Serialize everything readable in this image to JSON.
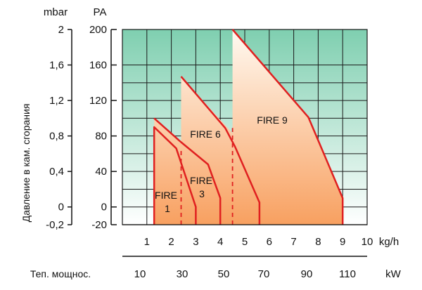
{
  "chart_data": {
    "type": "area",
    "x_axis": {
      "label": "kg/h",
      "range": [
        0,
        10
      ],
      "ticks": [
        "1",
        "2",
        "3",
        "4",
        "5",
        "6",
        "7",
        "8",
        "9",
        "10"
      ]
    },
    "secondary_x_axis": {
      "label": "kW",
      "caption": "Теп. мощнос.",
      "ticks": [
        "10",
        "30",
        "50",
        "70",
        "90",
        "110"
      ]
    },
    "y_axis_left": {
      "unit": "mbar",
      "ticks": [
        "2",
        "1,6",
        "1,2",
        "0,8",
        "0,4",
        "0",
        "-0,2"
      ]
    },
    "y_axis_right": {
      "unit": "PA",
      "ticks": [
        "200",
        "160",
        "120",
        "80",
        "40",
        "0",
        "-20"
      ],
      "range": [
        -20,
        200
      ]
    },
    "y_label": "Давление в кам. сгорания",
    "grid": true,
    "series": [
      {
        "name": "FIRE 1",
        "name_lines": [
          "FIRE",
          "1"
        ],
        "points": [
          [
            1.3,
            -20
          ],
          [
            1.3,
            90
          ],
          [
            2.2,
            66
          ],
          [
            3.0,
            0
          ],
          [
            3.0,
            -20
          ]
        ]
      },
      {
        "name": "FIRE 3",
        "name_lines": [
          "FIRE",
          "3"
        ],
        "points": [
          [
            1.3,
            100
          ],
          [
            2.4,
            73
          ],
          [
            3.5,
            48
          ],
          [
            4.0,
            10
          ],
          [
            4.0,
            -20
          ]
        ]
      },
      {
        "name": "FIRE 6",
        "name_lines": [
          "FIRE 6"
        ],
        "points": [
          [
            2.4,
            147
          ],
          [
            4.2,
            89
          ],
          [
            4.6,
            68
          ],
          [
            5.6,
            5
          ],
          [
            5.6,
            -20
          ]
        ]
      },
      {
        "name": "FIRE 9",
        "name_lines": [
          "FIRE 9"
        ],
        "points": [
          [
            4.5,
            200
          ],
          [
            7.6,
            101
          ],
          [
            9.0,
            10
          ],
          [
            9.0,
            -20
          ]
        ]
      }
    ],
    "fill_boundary": [
      [
        1.3,
        100
      ],
      [
        2.4,
        73
      ],
      [
        2.4,
        147
      ],
      [
        4.5,
        83
      ],
      [
        4.5,
        200
      ],
      [
        7.6,
        101
      ],
      [
        9.0,
        10
      ],
      [
        9.0,
        -20
      ],
      [
        1.3,
        -20
      ]
    ],
    "dashed_lines": [
      {
        "x": 2.4,
        "y_from": -20,
        "y_to": 66
      },
      {
        "x": 4.5,
        "y_from": -20,
        "y_to": 89
      }
    ],
    "colors": {
      "background_top": "#7fcfb0",
      "background_bottom": "#ffffff",
      "fill_top": "#fffaf2",
      "fill_bottom": "#f8a060",
      "line": "#e02020",
      "grid": "#1a1a1a"
    }
  }
}
